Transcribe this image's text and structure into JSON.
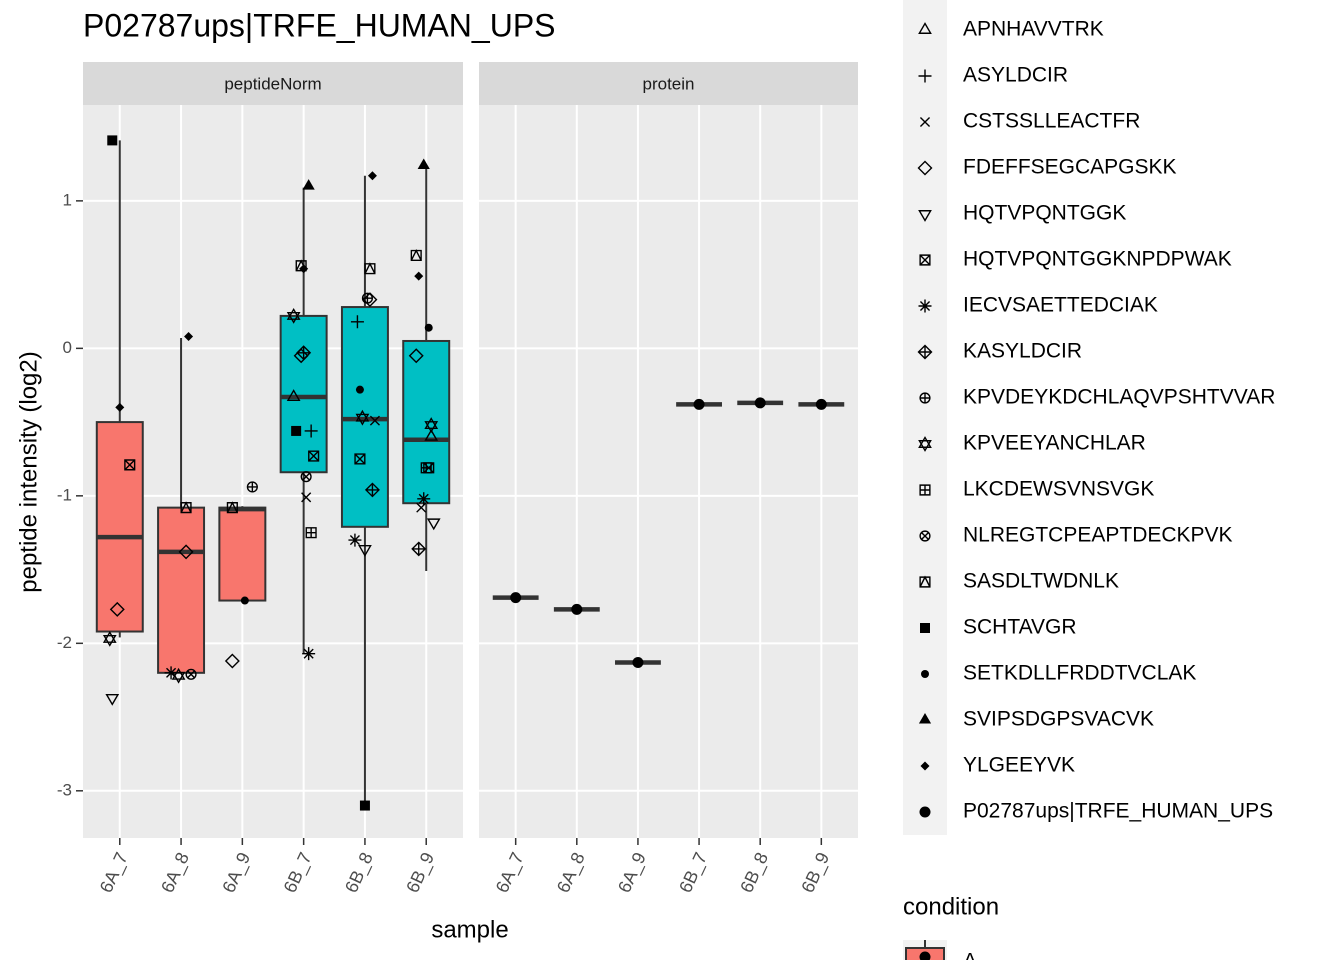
{
  "chart_data": {
    "type": "boxplot",
    "title": "P02787ups|TRFE_HUMAN_UPS",
    "y_label": "peptide intensity (log2)",
    "x_label": "sample",
    "ylim": [
      -3.32,
      1.65
    ],
    "yticks": [
      -3,
      -2,
      -1,
      0,
      1
    ],
    "grid": true,
    "categories": [
      "6A_7",
      "6A_8",
      "6A_9",
      "6B_7",
      "6B_8",
      "6B_9"
    ],
    "facets": [
      {
        "label": "peptideNorm",
        "box_colors": [
          "#F8766D",
          "#F8766D",
          "#F8766D",
          "#00BFC4",
          "#00BFC4",
          "#00BFC4"
        ],
        "boxes": {
          "low": [
            -1.96,
            -2.2,
            -1.71,
            -2.07,
            -3.1,
            -1.51
          ],
          "q1": [
            -1.92,
            -2.2,
            -1.71,
            -0.84,
            -1.21,
            -1.05
          ],
          "median": [
            -1.28,
            -1.38,
            -1.09,
            -0.33,
            -0.48,
            -0.62
          ],
          "q3": [
            -0.5,
            -1.08,
            -1.08,
            0.22,
            0.28,
            0.05
          ],
          "high": [
            1.41,
            0.07,
            -1.07,
            1.09,
            1.17,
            1.24
          ]
        },
        "series": [
          {
            "name": "APNHAVVTRK",
            "shape": "triangle",
            "values": [
              null,
              null,
              null,
              -0.33,
              null,
              -0.6
            ]
          },
          {
            "name": "ASYLDCIR",
            "shape": "plus",
            "values": [
              null,
              null,
              null,
              -0.56,
              0.18,
              null
            ]
          },
          {
            "name": "CSTSSLLEACTFR",
            "shape": "cross",
            "values": [
              null,
              null,
              null,
              -1.01,
              -0.49,
              -1.08
            ]
          },
          {
            "name": "FDEFFSEGCAPGSKK",
            "shape": "diamond",
            "values": [
              -1.77,
              -1.38,
              -2.12,
              -0.05,
              0.33,
              -0.05
            ]
          },
          {
            "name": "HQTVPQNTGGK",
            "shape": "triangle-down",
            "values": [
              -2.37,
              null,
              null,
              null,
              -1.36,
              -1.18
            ]
          },
          {
            "name": "HQTVPQNTGGKNPDPWAK",
            "shape": "square-cross",
            "values": [
              -0.79,
              null,
              null,
              -0.73,
              -0.75,
              -0.81
            ]
          },
          {
            "name": "IECVSAETTEDCIAK",
            "shape": "asterisk",
            "values": [
              null,
              -2.2,
              null,
              -2.07,
              -1.3,
              -1.02
            ]
          },
          {
            "name": "KASYLDCIR",
            "shape": "diamond-plus",
            "values": [
              null,
              null,
              null,
              -0.03,
              -0.96,
              -1.36
            ]
          },
          {
            "name": "KPVDEYKDCHLAQVPSHTVVAR",
            "shape": "circle-plus",
            "values": [
              null,
              null,
              -0.94,
              null,
              0.34,
              null
            ]
          },
          {
            "name": "KPVEEYANCHLAR",
            "shape": "star",
            "values": [
              -1.97,
              -2.22,
              null,
              0.22,
              -0.47,
              -0.52
            ]
          },
          {
            "name": "LKCDEWSVNSVGK",
            "shape": "square-plus",
            "values": [
              null,
              null,
              null,
              -1.25,
              null,
              -0.81
            ]
          },
          {
            "name": "NLREGTCPEAPTDECKPVK",
            "shape": "circle-cross",
            "values": [
              null,
              -2.21,
              null,
              -0.87,
              null,
              null
            ]
          },
          {
            "name": "SASDLTWDNLK",
            "shape": "square-triangle",
            "values": [
              null,
              -1.08,
              -1.08,
              0.56,
              0.54,
              0.63
            ]
          },
          {
            "name": "SCHTAVGR",
            "shape": "square-filled",
            "values": [
              1.41,
              null,
              null,
              -0.56,
              -3.1,
              null
            ]
          },
          {
            "name": "SETKDLLFRDDTVCLAK",
            "shape": "dot-filled",
            "values": [
              null,
              null,
              -1.71,
              null,
              -0.28,
              0.14
            ]
          },
          {
            "name": "SVIPSDGPSVACVK",
            "shape": "triangle-filled",
            "values": [
              null,
              null,
              null,
              1.1,
              null,
              1.24
            ]
          },
          {
            "name": "YLGEEYVK",
            "shape": "diamond-filled",
            "values": [
              -0.4,
              0.08,
              null,
              0.54,
              1.17,
              0.49
            ]
          }
        ]
      },
      {
        "label": "protein",
        "boxes": {
          "median": [
            -1.69,
            -1.77,
            -2.13,
            -0.38,
            -0.37,
            -0.38
          ]
        },
        "series": [
          {
            "name": "P02787ups|TRFE_HUMAN_UPS",
            "shape": "circle-filled",
            "values": [
              -1.69,
              -1.77,
              -2.13,
              -0.38,
              -0.37,
              -0.38
            ]
          }
        ]
      }
    ],
    "fill_legend": {
      "title": "condition",
      "entries": [
        {
          "name": "A",
          "color": "#F8766D"
        }
      ]
    }
  }
}
